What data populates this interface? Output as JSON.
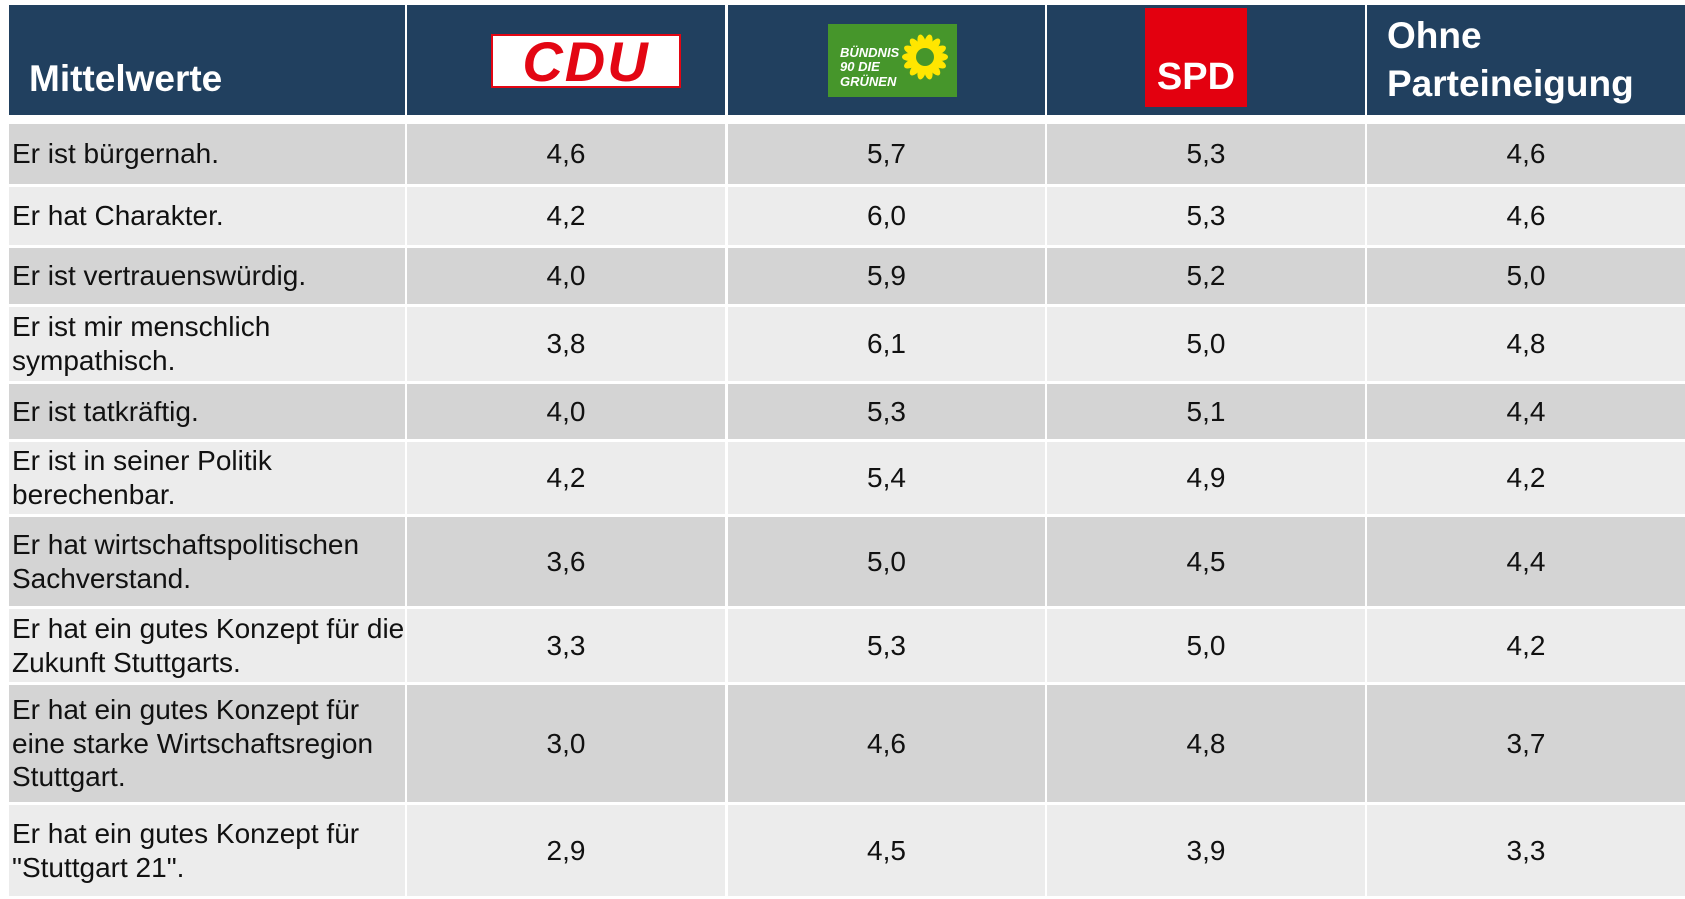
{
  "header": {
    "title": "Mittelwerte",
    "columns": [
      "CDU",
      "BÜNDNIS 90 DIE GRÜNEN",
      "SPD",
      "Ohne Parteineigung"
    ]
  },
  "table": {
    "rows": [
      [
        "Er ist bürgernah.",
        "4,6",
        "5,7",
        "5,3",
        "4,6"
      ],
      [
        "Er hat Charakter.",
        "4,2",
        "6,0",
        "5,3",
        "4,6"
      ],
      [
        "Er ist vertrauenswürdig.",
        "4,0",
        "5,9",
        "5,2",
        "5,0"
      ],
      [
        "Er ist mir menschlich sympathisch.",
        "3,8",
        "6,1",
        "5,0",
        "4,8"
      ],
      [
        "Er ist tatkräftig.",
        "4,0",
        "5,3",
        "5,1",
        "4,4"
      ],
      [
        "Er ist in seiner Politik berechenbar.",
        "4,2",
        "5,4",
        "4,9",
        "4,2"
      ],
      [
        "Er hat wirtschaftspolitischen Sachverstand.",
        "3,6",
        "5,0",
        "4,5",
        "4,4"
      ],
      [
        "Er hat ein gutes Konzept für die Zukunft Stuttgarts.",
        "3,3",
        "5,3",
        "5,0",
        "4,2"
      ],
      [
        "Er hat ein gutes Konzept für eine starke Wirtschaftsregion Stuttgart.",
        "3,0",
        "4,6",
        "4,8",
        "3,7"
      ],
      [
        "Er hat ein gutes Konzept für \"Stuttgart 21\".",
        "2,9",
        "4,5",
        "3,9",
        "3,3"
      ]
    ]
  }
}
